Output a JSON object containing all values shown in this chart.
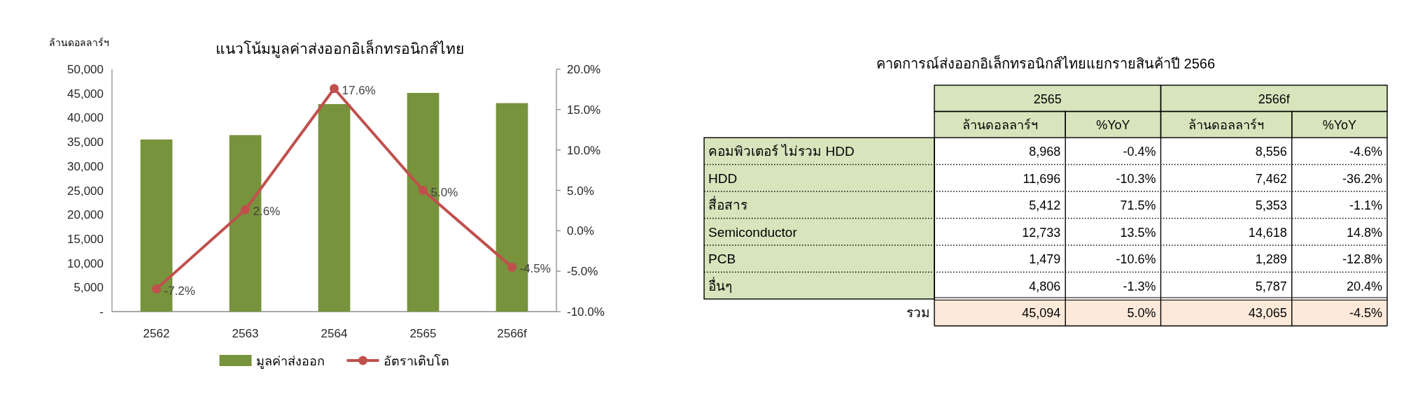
{
  "chart_data": [
    {
      "type": "bar",
      "title": "แนวโน้มมูลค่าส่งออกอิเล็กทรอนิกส์ไทย",
      "ylabel": "ล้านดอลลาร์ฯ",
      "categories": [
        "2562",
        "2563",
        "2564",
        "2565",
        "2566f"
      ],
      "series": [
        {
          "name": "มูลค่าส่งออก",
          "type": "bar",
          "color": "#77933c",
          "values": [
            35500,
            36400,
            42800,
            45100,
            43000
          ]
        },
        {
          "name": "อัตราเติบโต",
          "type": "line",
          "axis": "y2",
          "color": "#c0504d",
          "values": [
            -7.2,
            2.6,
            17.6,
            5.0,
            -4.5
          ],
          "value_labels": [
            "-7.2%",
            "2.6%",
            "17.6%",
            "5.0%",
            "-4.5%"
          ]
        }
      ],
      "ylim": [
        0,
        50000
      ],
      "yticks": [
        {
          "value": 0,
          "label": "-"
        },
        {
          "value": 5000,
          "label": "5,000"
        },
        {
          "value": 10000,
          "label": "10,000"
        },
        {
          "value": 15000,
          "label": "15,000"
        },
        {
          "value": 20000,
          "label": "20,000"
        },
        {
          "value": 25000,
          "label": "25,000"
        },
        {
          "value": 30000,
          "label": "30,000"
        },
        {
          "value": 35000,
          "label": "35,000"
        },
        {
          "value": 40000,
          "label": "40,000"
        },
        {
          "value": 45000,
          "label": "45,000"
        },
        {
          "value": 50000,
          "label": "50,000"
        }
      ],
      "y2lim": [
        -10,
        20
      ],
      "y2ticks": [
        {
          "value": -10,
          "label": "-10.0%"
        },
        {
          "value": -5,
          "label": "-5.0%"
        },
        {
          "value": 0,
          "label": "0.0%"
        },
        {
          "value": 5,
          "label": "5.0%"
        },
        {
          "value": 10,
          "label": "10.0%"
        },
        {
          "value": 15,
          "label": "15.0%"
        },
        {
          "value": 20,
          "label": "20.0%"
        }
      ],
      "marker": "circle",
      "legend": "bottom"
    },
    {
      "type": "other",
      "title": "คาดการณ์ส่งออกอิเล็กทรอนิกส์ไทยแยกรายสินค้าปี 2566",
      "annotations": [
        "2565",
        "2566f"
      ],
      "categories": [
        "ล้านดอลลาร์ฯ",
        "%YoY",
        "ล้านดอลลาร์ฯ",
        "%YoY"
      ],
      "y_categories": [
        "คอมพิวเตอร์ ไม่รวม HDD",
        "HDD",
        "สื่อสาร",
        "Semiconductor",
        "PCB",
        "อื่นๆ",
        "รวม"
      ],
      "cell_labels": [
        [
          "8,968",
          "-0.4%",
          "8,556",
          "-4.6%"
        ],
        [
          "11,696",
          "-10.3%",
          "7,462",
          "-36.2%"
        ],
        [
          "5,412",
          "71.5%",
          "5,353",
          "-1.1%"
        ],
        [
          "12,733",
          "13.5%",
          "14,618",
          "14.8%"
        ],
        [
          "1,479",
          "-10.6%",
          "1,289",
          "-12.8%"
        ],
        [
          "4,806",
          "-1.3%",
          "5,787",
          "20.4%"
        ],
        [
          "45,094",
          "5.0%",
          "43,065",
          "-4.5%"
        ]
      ]
    }
  ]
}
